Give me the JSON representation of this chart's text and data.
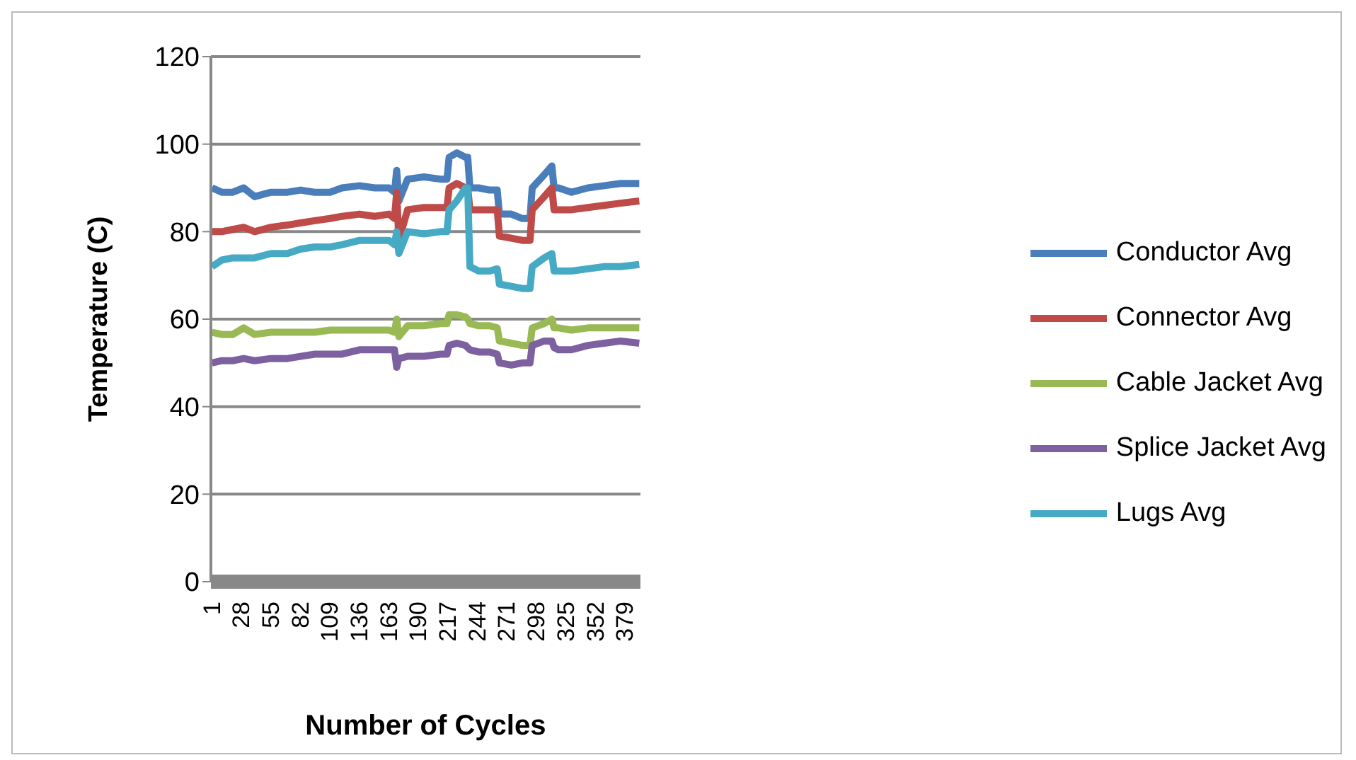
{
  "chart_data": {
    "type": "line",
    "xlabel": "Number of Cycles",
    "ylabel": "Temperature (C)",
    "x": [
      1,
      10,
      20,
      30,
      40,
      55,
      70,
      82,
      95,
      109,
      120,
      136,
      150,
      163,
      168,
      170,
      172,
      180,
      195,
      210,
      216,
      218,
      225,
      233,
      235,
      237,
      245,
      255,
      262,
      264,
      275,
      285,
      292,
      294,
      305,
      312,
      314,
      318,
      330,
      345,
      360,
      375,
      392
    ],
    "xlim": [
      0,
      393
    ],
    "xticks": [
      1,
      28,
      55,
      82,
      109,
      136,
      163,
      190,
      217,
      244,
      271,
      298,
      325,
      352,
      379
    ],
    "ylim": [
      0,
      120
    ],
    "yticks": [
      0,
      20,
      40,
      60,
      80,
      100,
      120
    ],
    "grid": "y",
    "legend": "right",
    "marker": "none",
    "line_style": "solid",
    "series": [
      {
        "name": "Conductor Avg",
        "color": "#4a7ebb",
        "values": [
          90,
          89,
          89,
          90,
          88,
          89,
          89,
          89.5,
          89,
          89,
          90,
          90.5,
          90,
          90,
          89,
          94,
          87,
          92,
          92.5,
          92,
          92,
          97,
          98,
          97,
          97,
          90,
          90,
          89.5,
          89.5,
          84,
          84,
          83,
          83,
          90,
          93,
          95,
          90,
          90,
          89,
          90,
          90.5,
          91,
          91
        ]
      },
      {
        "name": "Connector Avg",
        "color": "#be4b48",
        "values": [
          80,
          80,
          80.5,
          81,
          80,
          81,
          81.5,
          82,
          82.5,
          83,
          83.5,
          84,
          83.5,
          84,
          83,
          89,
          78,
          85,
          85.5,
          85.5,
          85.5,
          90,
          91,
          90,
          90,
          85,
          85,
          85,
          85,
          79,
          78.5,
          78,
          78,
          85,
          88,
          90,
          85,
          85,
          85,
          85.5,
          86,
          86.5,
          87
        ]
      },
      {
        "name": "Cable Jacket Avg",
        "color": "#98b954",
        "values": [
          57,
          56.5,
          56.5,
          58,
          56.5,
          57,
          57,
          57,
          57,
          57.5,
          57.5,
          57.5,
          57.5,
          57.5,
          57,
          60,
          56,
          58.5,
          58.5,
          59,
          59,
          61,
          61,
          60.5,
          60,
          59,
          58.5,
          58.5,
          58,
          55,
          54.5,
          54,
          54,
          58,
          59,
          60,
          58,
          58,
          57.5,
          58,
          58,
          58,
          58
        ]
      },
      {
        "name": "Splice Jacket Avg",
        "color": "#7d60a0",
        "values": [
          50,
          50.5,
          50.5,
          51,
          50.5,
          51,
          51,
          51.5,
          52,
          52,
          52,
          53,
          53,
          53,
          53,
          49,
          51,
          51.5,
          51.5,
          52,
          52,
          54,
          54.5,
          54,
          53.5,
          53,
          52.5,
          52.5,
          52,
          50,
          49.5,
          50,
          50,
          54,
          55,
          55,
          53.5,
          53,
          53,
          54,
          54.5,
          55,
          54.5
        ]
      },
      {
        "name": "Lugs Avg",
        "color": "#46aac5",
        "values": [
          72,
          73.5,
          74,
          74,
          74,
          75,
          75,
          76,
          76.5,
          76.5,
          77,
          78,
          78,
          78,
          77,
          80,
          75,
          80,
          79.5,
          80,
          80,
          85,
          87,
          90,
          90,
          72,
          71,
          71,
          71.5,
          68,
          67.5,
          67,
          67,
          72,
          74,
          75,
          71,
          71,
          71,
          71.5,
          72,
          72,
          72.5
        ]
      }
    ]
  }
}
